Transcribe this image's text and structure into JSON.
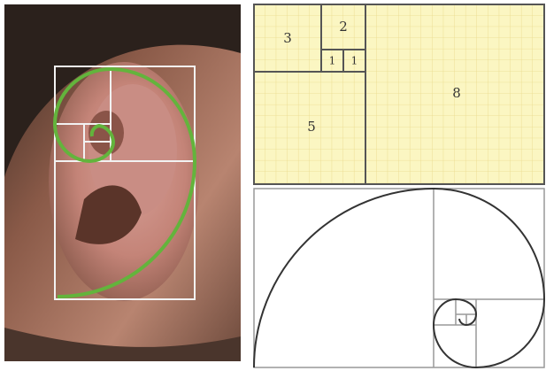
{
  "fibonacci_grid": {
    "squares": [
      {
        "label": "3"
      },
      {
        "label": "2"
      },
      {
        "label": "1"
      },
      {
        "label": "1"
      },
      {
        "label": "5"
      },
      {
        "label": "8"
      }
    ]
  }
}
